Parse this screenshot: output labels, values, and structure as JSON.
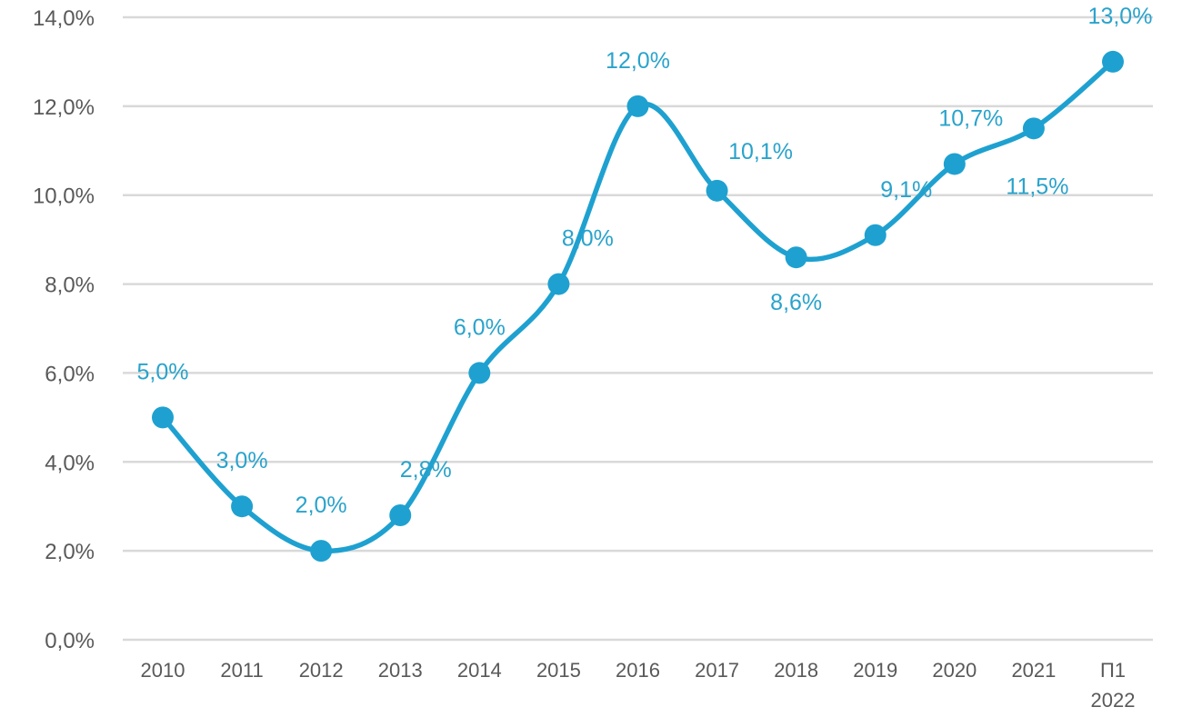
{
  "chart_data": {
    "type": "line",
    "title": "",
    "xlabel": "",
    "ylabel": "",
    "categories": [
      [
        "2010"
      ],
      [
        "2011"
      ],
      [
        "2012"
      ],
      [
        "2013"
      ],
      [
        "2014"
      ],
      [
        "2015"
      ],
      [
        "2016"
      ],
      [
        "2017"
      ],
      [
        "2018"
      ],
      [
        "2019"
      ],
      [
        "2020"
      ],
      [
        "2021"
      ],
      [
        "П1",
        "2022"
      ]
    ],
    "series": [
      {
        "values": [
          5.0,
          3.0,
          2.0,
          2.8,
          6.0,
          8.0,
          12.0,
          10.1,
          8.6,
          9.1,
          10.7,
          11.5,
          13.0
        ],
        "labels": [
          "5,0%",
          "3,0%",
          "2,0%",
          "2,8%",
          "6,0%",
          "8,0%",
          "12,0%",
          "10,1%",
          "8,6%",
          "9,1%",
          "10,7%",
          "11,5%",
          "13,0%"
        ]
      }
    ],
    "ylim": [
      0,
      14
    ],
    "yticks": [
      0,
      2,
      4,
      6,
      8,
      10,
      12,
      14
    ],
    "ytick_labels": [
      "0,0%",
      "2,0%",
      "4,0%",
      "6,0%",
      "8,0%",
      "10,0%",
      "12,0%",
      "14,0%"
    ],
    "grid": true,
    "legend": "none",
    "smooth": true,
    "colors": {
      "line": "#1ea1d0",
      "label": "#29a3cc",
      "grid": "#d9d9d9",
      "tick_text": "#595959"
    }
  }
}
